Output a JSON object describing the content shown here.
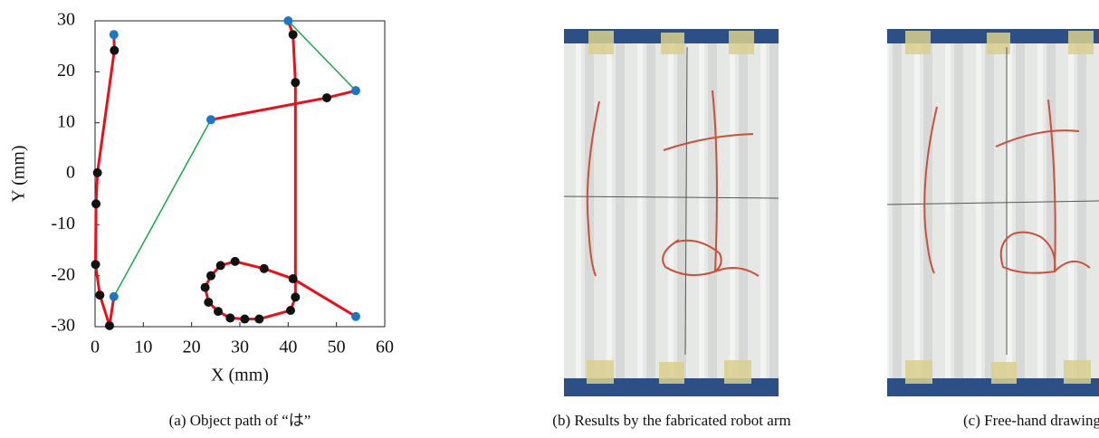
{
  "chart_data": {
    "type": "line",
    "xlabel": "X (mm)",
    "ylabel": "Y (mm)",
    "xlim": [
      0,
      60
    ],
    "xticks": [
      0,
      10,
      20,
      30,
      40,
      50,
      60
    ],
    "ylim": [
      -30,
      30
    ],
    "yticks": [
      -30,
      -20,
      -10,
      0,
      10,
      20,
      30
    ],
    "series": [
      {
        "color": "#e8101a",
        "style": "line",
        "x": [
          3.9,
          4,
          0.5,
          0.2,
          0.1,
          1,
          3,
          3.9
        ],
        "values": [
          27.3,
          24.2,
          0.2,
          -5.9,
          -17.8,
          -23.8,
          -29.8,
          -24.1
        ]
      },
      {
        "color": "#1aa64a",
        "style": "line",
        "x": [
          3.9,
          24
        ],
        "values": [
          -24.1,
          10.6
        ]
      },
      {
        "color": "#e8101a",
        "style": "line",
        "x": [
          24,
          48,
          54
        ],
        "values": [
          10.6,
          14.9,
          16.3
        ]
      },
      {
        "color": "#1aa64a",
        "style": "line",
        "x": [
          54,
          40
        ],
        "values": [
          16.3,
          30
        ]
      },
      {
        "color": "#e8101a",
        "style": "line",
        "x": [
          40,
          41,
          41.5,
          41.5,
          40.5,
          34,
          31,
          28,
          25.5,
          23.5,
          22.8,
          24,
          26,
          29,
          35,
          41,
          54
        ],
        "values": [
          30,
          27.3,
          17.9,
          -24.2,
          -26.8,
          -28.5,
          -28.5,
          -28.3,
          -27,
          -25.2,
          -22.3,
          -20,
          -18,
          -17.2,
          -18.6,
          -20.6,
          -28
        ]
      },
      {
        "color": "#111111",
        "style": "markers",
        "x": [
          4,
          0.5,
          0.2,
          0.1,
          1,
          3,
          48,
          41,
          41.5,
          41.5,
          40.5,
          34,
          31,
          28,
          25.5,
          23.5,
          22.8,
          24,
          26,
          29,
          35,
          41
        ],
        "values": [
          24.2,
          0.2,
          -5.9,
          -17.8,
          -23.8,
          -29.8,
          14.9,
          27.3,
          17.9,
          -24.2,
          -26.8,
          -28.5,
          -28.5,
          -28.3,
          -27,
          -25.2,
          -22.3,
          -20,
          -18,
          -17.2,
          -18.6,
          -20.6
        ]
      },
      {
        "color": "#1f77c4",
        "style": "markers",
        "x": [
          3.9,
          3.9,
          24,
          54,
          40,
          54
        ],
        "values": [
          27.3,
          -24.1,
          10.6,
          16.3,
          30,
          -28
        ]
      }
    ]
  },
  "captions": [
    "(a) Object path of “は”",
    "(b) Results by the fabricated robot arm",
    "(c) Free-hand drawing"
  ]
}
